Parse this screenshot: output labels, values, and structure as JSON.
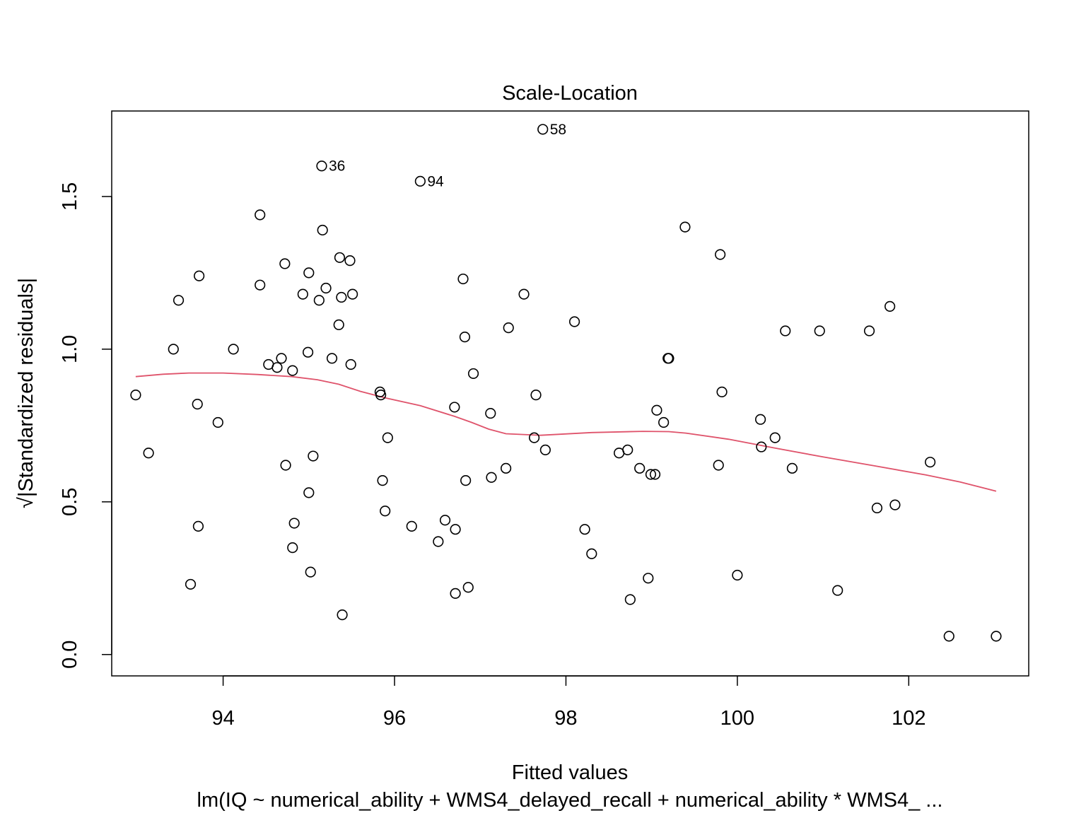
{
  "chart_data": {
    "type": "scatter",
    "title": "Scale-Location",
    "xlabel": "Fitted values",
    "ylabel": "√|Standardized residuals|",
    "caption": "lm(IQ ~ numerical_ability + WMS4_delayed_recall + numerical_ability * WMS4_ ...",
    "xlim": [
      92.7,
      103.4
    ],
    "ylim": [
      -0.07,
      1.78
    ],
    "xticks": [
      94,
      96,
      98,
      100,
      102
    ],
    "yticks": [
      0.0,
      0.5,
      1.0,
      1.5
    ],
    "xtick_labels": [
      "94",
      "96",
      "98",
      "100",
      "102"
    ],
    "ytick_labels": [
      "0.0",
      "0.5",
      "1.0",
      "1.5"
    ],
    "grid": false,
    "colors": {
      "points": "#000000",
      "smooth": "#DF536B"
    },
    "points": [
      [
        92.98,
        0.85
      ],
      [
        93.13,
        0.66
      ],
      [
        93.42,
        1.0
      ],
      [
        93.48,
        1.16
      ],
      [
        93.62,
        0.23
      ],
      [
        93.7,
        0.82
      ],
      [
        93.71,
        0.42
      ],
      [
        93.72,
        1.24
      ],
      [
        93.94,
        0.76
      ],
      [
        94.12,
        1.0
      ],
      [
        94.43,
        1.44
      ],
      [
        94.43,
        1.21
      ],
      [
        94.53,
        0.95
      ],
      [
        94.63,
        0.94
      ],
      [
        94.68,
        0.97
      ],
      [
        94.72,
        1.28
      ],
      [
        94.73,
        0.62
      ],
      [
        94.81,
        0.93
      ],
      [
        94.81,
        0.35
      ],
      [
        94.83,
        0.43
      ],
      [
        94.93,
        1.18
      ],
      [
        94.99,
        0.99
      ],
      [
        95.0,
        1.25
      ],
      [
        95.0,
        0.53
      ],
      [
        95.02,
        0.27
      ],
      [
        95.05,
        0.65
      ],
      [
        95.12,
        1.16
      ],
      [
        95.15,
        1.6
      ],
      [
        95.16,
        1.39
      ],
      [
        95.2,
        1.2
      ],
      [
        95.27,
        0.97
      ],
      [
        95.35,
        1.08
      ],
      [
        95.36,
        1.3
      ],
      [
        95.38,
        1.17
      ],
      [
        95.39,
        0.13
      ],
      [
        95.48,
        1.29
      ],
      [
        95.49,
        0.95
      ],
      [
        95.51,
        1.18
      ],
      [
        95.83,
        0.86
      ],
      [
        95.84,
        0.85
      ],
      [
        95.86,
        0.57
      ],
      [
        95.89,
        0.47
      ],
      [
        95.92,
        0.71
      ],
      [
        96.2,
        0.42
      ],
      [
        96.3,
        1.55
      ],
      [
        96.51,
        0.37
      ],
      [
        96.59,
        0.44
      ],
      [
        96.7,
        0.81
      ],
      [
        96.71,
        0.41
      ],
      [
        96.71,
        0.2
      ],
      [
        96.8,
        1.23
      ],
      [
        96.82,
        1.04
      ],
      [
        96.83,
        0.57
      ],
      [
        96.86,
        0.22
      ],
      [
        96.92,
        0.92
      ],
      [
        97.12,
        0.79
      ],
      [
        97.13,
        0.58
      ],
      [
        97.3,
        0.61
      ],
      [
        97.33,
        1.07
      ],
      [
        97.51,
        1.18
      ],
      [
        97.63,
        0.71
      ],
      [
        97.65,
        0.85
      ],
      [
        97.73,
        1.72
      ],
      [
        97.76,
        0.67
      ],
      [
        98.1,
        1.09
      ],
      [
        98.22,
        0.41
      ],
      [
        98.3,
        0.33
      ],
      [
        98.62,
        0.66
      ],
      [
        98.72,
        0.67
      ],
      [
        98.75,
        0.18
      ],
      [
        98.86,
        0.61
      ],
      [
        98.96,
        0.25
      ],
      [
        98.99,
        0.59
      ],
      [
        99.04,
        0.59
      ],
      [
        99.06,
        0.8
      ],
      [
        99.14,
        0.76
      ],
      [
        99.19,
        0.97
      ],
      [
        99.2,
        0.97
      ],
      [
        99.39,
        1.4
      ],
      [
        99.78,
        0.62
      ],
      [
        99.8,
        1.31
      ],
      [
        99.82,
        0.86
      ],
      [
        100.0,
        0.26
      ],
      [
        100.27,
        0.77
      ],
      [
        100.28,
        0.68
      ],
      [
        100.44,
        0.71
      ],
      [
        100.56,
        1.06
      ],
      [
        100.64,
        0.61
      ],
      [
        100.96,
        1.06
      ],
      [
        101.17,
        0.21
      ],
      [
        101.54,
        1.06
      ],
      [
        101.63,
        0.48
      ],
      [
        101.78,
        1.14
      ],
      [
        101.84,
        0.49
      ],
      [
        102.25,
        0.63
      ],
      [
        102.47,
        0.06
      ],
      [
        103.02,
        0.06
      ]
    ],
    "smooth_line": [
      [
        92.98,
        0.91
      ],
      [
        93.3,
        0.918
      ],
      [
        93.6,
        0.922
      ],
      [
        94.0,
        0.922
      ],
      [
        94.4,
        0.917
      ],
      [
        94.8,
        0.91
      ],
      [
        95.1,
        0.9
      ],
      [
        95.35,
        0.885
      ],
      [
        95.6,
        0.862
      ],
      [
        95.9,
        0.84
      ],
      [
        96.3,
        0.815
      ],
      [
        96.7,
        0.78
      ],
      [
        96.9,
        0.76
      ],
      [
        97.1,
        0.738
      ],
      [
        97.3,
        0.723
      ],
      [
        97.7,
        0.718
      ],
      [
        98.3,
        0.727
      ],
      [
        98.9,
        0.731
      ],
      [
        99.2,
        0.73
      ],
      [
        99.4,
        0.725
      ],
      [
        99.9,
        0.705
      ],
      [
        100.4,
        0.678
      ],
      [
        101.0,
        0.647
      ],
      [
        101.6,
        0.618
      ],
      [
        102.2,
        0.588
      ],
      [
        102.6,
        0.565
      ],
      [
        103.02,
        0.535
      ]
    ],
    "labeled_points": [
      {
        "label": "58",
        "x": 97.73,
        "y": 1.72
      },
      {
        "label": "36",
        "x": 95.15,
        "y": 1.6
      },
      {
        "label": "94",
        "x": 96.3,
        "y": 1.55
      }
    ]
  }
}
